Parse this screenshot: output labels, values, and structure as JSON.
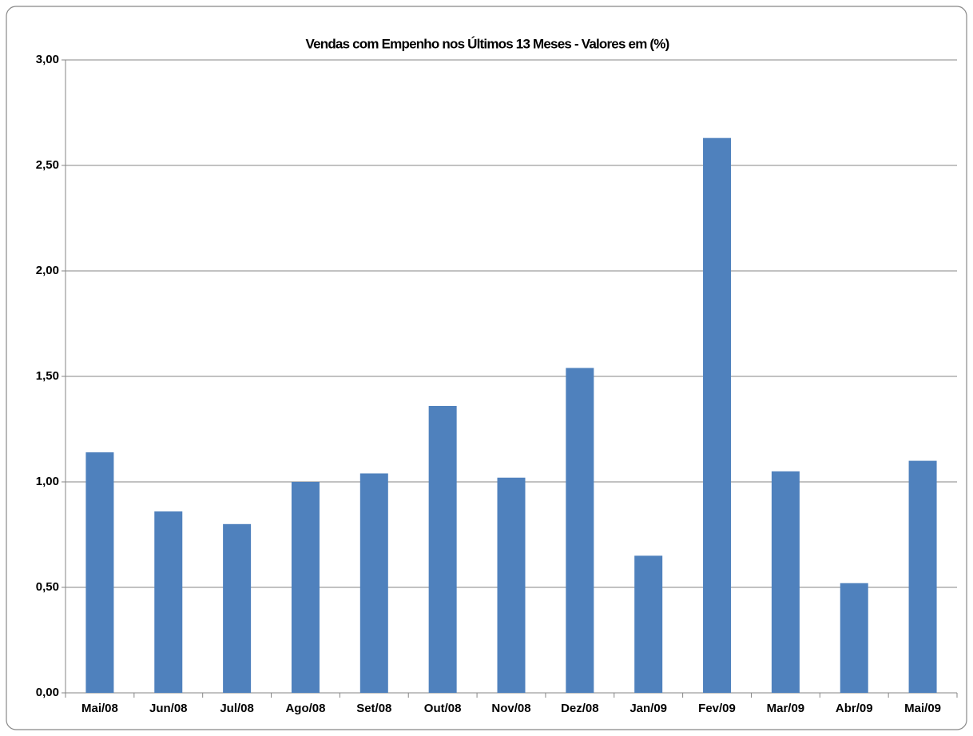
{
  "chart_data": {
    "type": "bar",
    "title": "Vendas com Empenho nos Últimos 13 Meses - Valores em (%)",
    "categories": [
      "Mai/08",
      "Jun/08",
      "Jul/08",
      "Ago/08",
      "Set/08",
      "Out/08",
      "Nov/08",
      "Dez/08",
      "Jan/09",
      "Fev/09",
      "Mar/09",
      "Abr/09",
      "Mai/09"
    ],
    "values": [
      1.14,
      0.86,
      0.8,
      1.0,
      1.04,
      1.36,
      1.02,
      1.54,
      0.65,
      2.63,
      1.05,
      0.52,
      1.1
    ],
    "color": "#4f81bd",
    "ylim": [
      0,
      3
    ],
    "yticks": [
      {
        "value": 0,
        "label": "0,00"
      },
      {
        "value": 0.5,
        "label": "0,50"
      },
      {
        "value": 1,
        "label": "1,00"
      },
      {
        "value": 1.5,
        "label": "1,50"
      },
      {
        "value": 2,
        "label": "2,00"
      },
      {
        "value": 2.5,
        "label": "2,50"
      },
      {
        "value": 3,
        "label": "3,00"
      }
    ],
    "grid": true
  }
}
